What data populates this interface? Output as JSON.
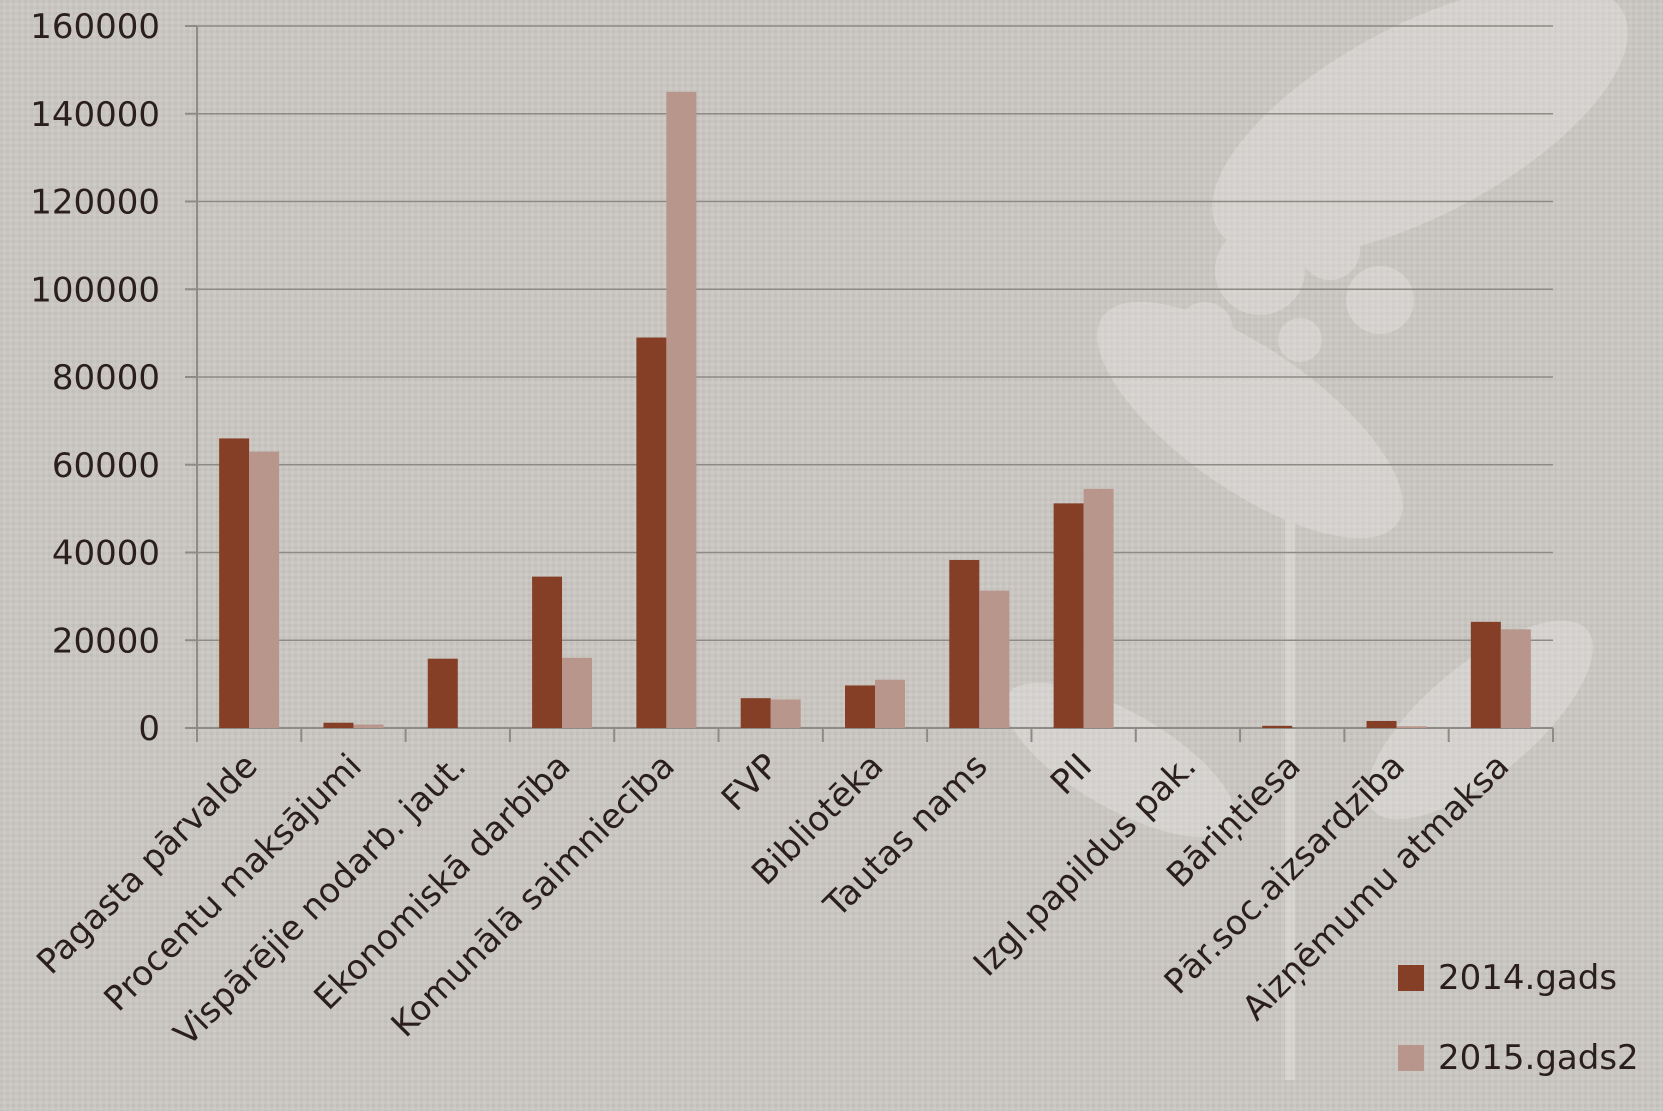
{
  "chart_data": {
    "type": "bar",
    "title": "",
    "xlabel": "",
    "ylabel": "",
    "ylim": [
      0,
      160000
    ],
    "yticks": [
      0,
      20000,
      40000,
      60000,
      80000,
      100000,
      120000,
      140000,
      160000
    ],
    "grid": true,
    "legend_position": "bottom-right",
    "categories": [
      "Pagasta pārvalde",
      "Procentu maksājumi",
      "Vispārējie nodarb. jaut.",
      "Ekonomiskā darbība",
      "Komunālā saimniecība",
      "FVP",
      "Bibliotēka",
      "Tautas nams",
      "PII",
      "Izgl.papildus pak.",
      "Bāriņtiesa",
      "Pār.soc.aizsardzība",
      "Aizņēmumu atmaksa"
    ],
    "series": [
      {
        "name": "2014.gads",
        "color": "#843f26",
        "values": [
          66000,
          1200,
          15800,
          34500,
          89000,
          6800,
          9700,
          38300,
          51200,
          0,
          500,
          1600,
          24200
        ]
      },
      {
        "name": "2015.gads2",
        "color": "#b8968b",
        "values": [
          63000,
          800,
          0,
          16000,
          145000,
          6500,
          11000,
          31300,
          54500,
          0,
          0,
          400,
          22500
        ]
      }
    ]
  }
}
